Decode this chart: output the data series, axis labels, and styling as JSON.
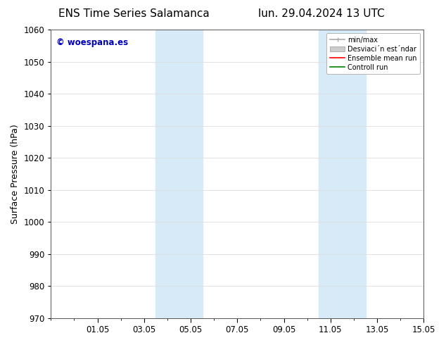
{
  "title_left": "ENS Time Series Salamanca",
  "title_right": "lun. 29.04.2024 13 UTC",
  "ylabel": "Surface Pressure (hPa)",
  "ylim": [
    970,
    1060
  ],
  "yticks": [
    970,
    980,
    990,
    1000,
    1010,
    1020,
    1030,
    1040,
    1050,
    1060
  ],
  "xtick_positions": [
    2,
    4,
    6,
    8,
    10,
    12,
    14,
    16
  ],
  "xtick_labels": [
    "01.05",
    "03.05",
    "05.05",
    "07.05",
    "09.05",
    "11.05",
    "13.05",
    "15.05"
  ],
  "xlim": [
    0,
    16
  ],
  "band1": [
    4.5,
    6.5
  ],
  "band2": [
    11.5,
    13.5
  ],
  "shaded_color": "#d6eaf8",
  "watermark_text": "© woespana.es",
  "watermark_color": "#0000bb",
  "legend_label1": "min/max",
  "legend_label2": "Desviaci´n est´ndar",
  "legend_label3": "Ensemble mean run",
  "legend_label4": "Controll run",
  "legend_color1": "#aaaaaa",
  "legend_color2": "#cccccc",
  "legend_color3": "#ff0000",
  "legend_color4": "#008000",
  "bg_color": "#ffffff",
  "grid_color": "#dddddd",
  "title_fontsize": 11,
  "label_fontsize": 9,
  "tick_fontsize": 8.5,
  "watermark_fontsize": 8.5,
  "legend_fontsize": 7
}
